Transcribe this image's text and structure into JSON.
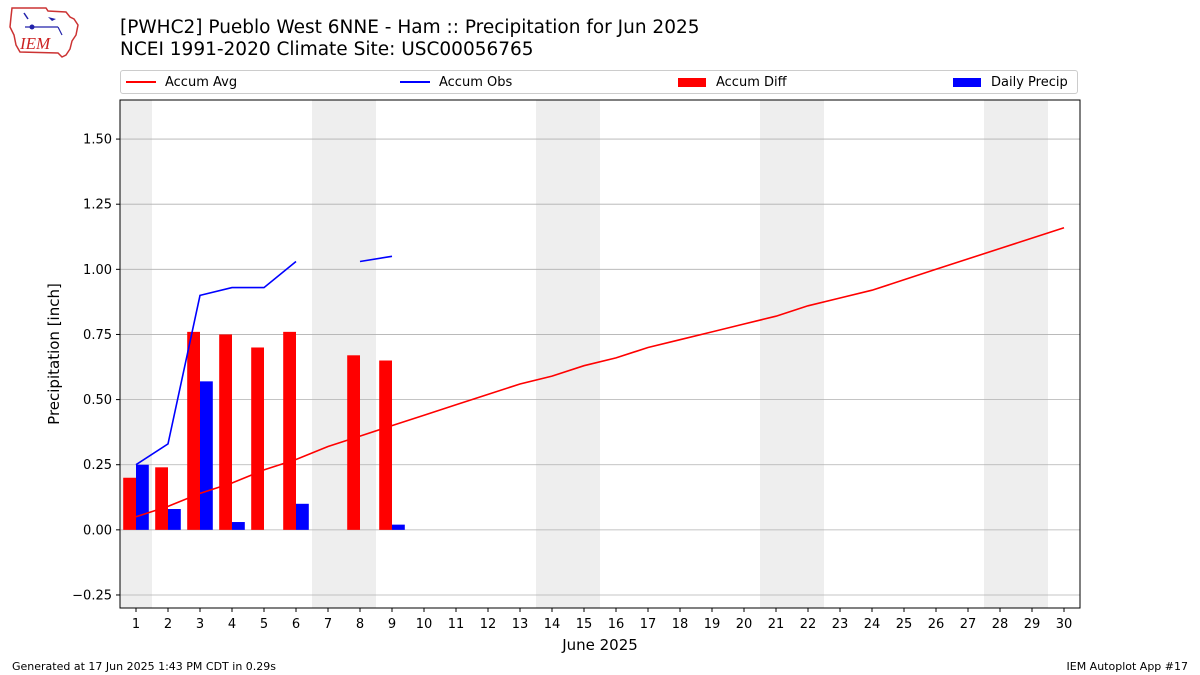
{
  "header": {
    "logo_text": "IEM",
    "title_line1": "[PWHC2] Pueblo West 6NNE - Ham :: Precipitation for Jun 2025",
    "title_line2": "NCEI 1991-2020 Climate Site: USC00056765"
  },
  "legend": {
    "placement": "top",
    "items": [
      {
        "label": "Accum Avg",
        "kind": "line",
        "color": "#ff0000"
      },
      {
        "label": "Accum Obs",
        "kind": "line",
        "color": "#0000ff"
      },
      {
        "label": "Accum Diff",
        "kind": "bar",
        "color": "#ff0000"
      },
      {
        "label": "Daily Precip",
        "kind": "bar",
        "color": "#0000ff"
      }
    ]
  },
  "footer": {
    "left": "Generated at 17 Jun 2025 1:43 PM CDT in 0.29s",
    "right": "IEM Autoplot App #17"
  },
  "colors": {
    "avg": "#ff0000",
    "obs": "#0000ff",
    "diff": "#ff0000",
    "daily": "#0000ff",
    "weekend_shade": "#eeeeee",
    "grid": "#b0b0b0"
  },
  "chart_data": {
    "type": "bar",
    "xlabel": "June 2025",
    "ylabel": "Precipitation [inch]",
    "xlim": [
      0.5,
      30.5
    ],
    "ylim": [
      -0.3,
      1.65
    ],
    "yticks": [
      -0.25,
      0.0,
      0.25,
      0.5,
      0.75,
      1.0,
      1.25,
      1.5
    ],
    "ytick_labels": [
      "−0.25",
      "0.00",
      "0.25",
      "0.50",
      "0.75",
      "1.00",
      "1.25",
      "1.50"
    ],
    "grid": "horizontal",
    "x": [
      1,
      2,
      3,
      4,
      5,
      6,
      7,
      8,
      9,
      10,
      11,
      12,
      13,
      14,
      15,
      16,
      17,
      18,
      19,
      20,
      21,
      22,
      23,
      24,
      25,
      26,
      27,
      28,
      29,
      30
    ],
    "weekend_days": [
      1,
      7,
      8,
      14,
      15,
      21,
      22,
      28,
      29
    ],
    "series": [
      {
        "name": "Accum Avg",
        "kind": "line",
        "values": [
          0.05,
          0.09,
          0.14,
          0.18,
          0.23,
          0.27,
          0.32,
          0.36,
          0.4,
          0.44,
          0.48,
          0.52,
          0.56,
          0.59,
          0.63,
          0.66,
          0.7,
          0.73,
          0.76,
          0.79,
          0.82,
          0.86,
          0.89,
          0.92,
          0.96,
          1.0,
          1.04,
          1.08,
          1.12,
          1.16
        ]
      },
      {
        "name": "Accum Obs",
        "kind": "line",
        "values": [
          0.25,
          0.33,
          0.9,
          0.93,
          0.93,
          1.03,
          null,
          1.03,
          1.05,
          null,
          null,
          null,
          null,
          null,
          null,
          null,
          null,
          null,
          null,
          null,
          null,
          null,
          null,
          null,
          null,
          null,
          null,
          null,
          null,
          null
        ]
      },
      {
        "name": "Accum Diff",
        "kind": "bar",
        "values": [
          0.2,
          0.24,
          0.76,
          0.75,
          0.7,
          0.76,
          null,
          0.67,
          0.65,
          null,
          null,
          null,
          null,
          null,
          null,
          null,
          null,
          null,
          null,
          null,
          null,
          null,
          null,
          null,
          null,
          null,
          null,
          null,
          null,
          null
        ]
      },
      {
        "name": "Daily Precip",
        "kind": "bar",
        "values": [
          0.25,
          0.08,
          0.57,
          0.03,
          0.0,
          0.1,
          null,
          0.0,
          0.02,
          null,
          null,
          null,
          null,
          null,
          null,
          null,
          null,
          null,
          null,
          null,
          null,
          null,
          null,
          null,
          null,
          null,
          null,
          null,
          null,
          null
        ]
      }
    ]
  }
}
